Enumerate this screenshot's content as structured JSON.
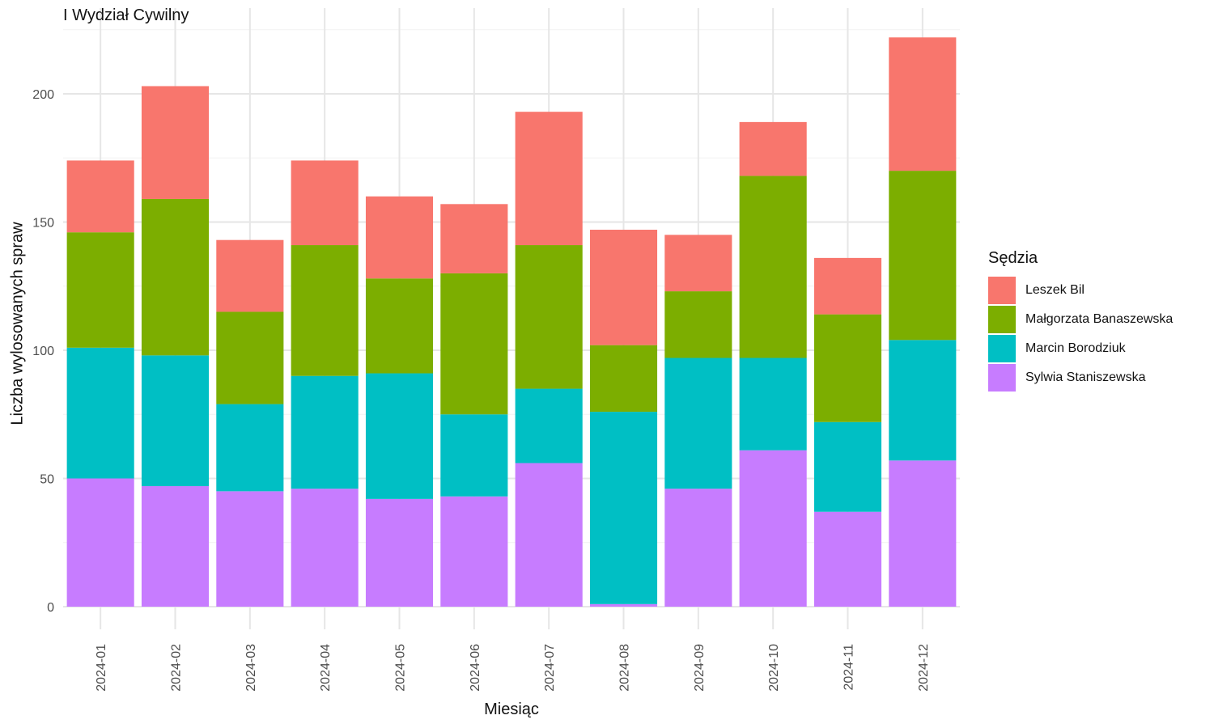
{
  "chart_data": {
    "type": "bar",
    "stacked": true,
    "title": "I Wydział Cywilny",
    "xlabel": "Miesiąc",
    "ylabel": "Liczba wylosowanych spraw",
    "ylim": [
      0,
      225
    ],
    "yticks": [
      0,
      50,
      100,
      150,
      200
    ],
    "grid": true,
    "legend_title": "Sędzia",
    "legend_position": "right",
    "categories": [
      "2024-01",
      "2024-02",
      "2024-03",
      "2024-04",
      "2024-05",
      "2024-06",
      "2024-07",
      "2024-08",
      "2024-09",
      "2024-10",
      "2024-11",
      "2024-12"
    ],
    "series": [
      {
        "name": "Leszek Bil",
        "color": "#F8766D",
        "values": [
          28,
          44,
          28,
          33,
          32,
          27,
          52,
          45,
          22,
          21,
          22,
          52
        ]
      },
      {
        "name": "Małgorzata Banaszewska",
        "color": "#7CAE00",
        "values": [
          45,
          61,
          36,
          51,
          37,
          55,
          56,
          26,
          26,
          71,
          42,
          66
        ]
      },
      {
        "name": "Marcin Borodziuk",
        "color": "#00BFC4",
        "values": [
          51,
          51,
          34,
          44,
          49,
          32,
          29,
          75,
          51,
          36,
          35,
          47
        ]
      },
      {
        "name": "Sylwia Staniszewska",
        "color": "#C77CFF",
        "values": [
          50,
          47,
          45,
          46,
          42,
          43,
          56,
          1,
          46,
          61,
          37,
          57
        ]
      }
    ]
  }
}
